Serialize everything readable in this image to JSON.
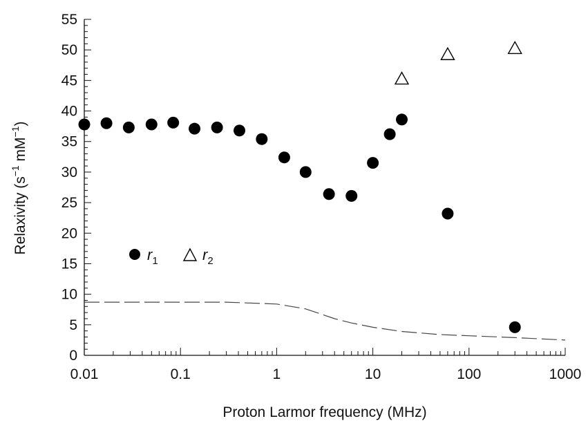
{
  "chart_data": {
    "type": "scatter",
    "xlabel": "Proton Larmor frequency (MHz)",
    "ylabel": {
      "base": "Relaxivity (s",
      "exp1": "−1",
      "mid": " mM",
      "exp2": "−1",
      "end": ")"
    },
    "x_scale": "log",
    "xlim": [
      0.01,
      1000
    ],
    "ylim": [
      0,
      55
    ],
    "x_tick_labels": [
      "0.01",
      "0.1",
      "1",
      "10",
      "100",
      "1000"
    ],
    "y_tick_labels": [
      "0",
      "5",
      "10",
      "15",
      "20",
      "25",
      "30",
      "35",
      "40",
      "45",
      "50",
      "55"
    ],
    "legend": {
      "placement": "lower-left",
      "r1": {
        "base": "r",
        "sub": "1"
      },
      "r2": {
        "base": "r",
        "sub": "2"
      }
    },
    "series": [
      {
        "name": "r1",
        "marker": "filled-circle",
        "x": [
          0.01,
          0.017,
          0.029,
          0.05,
          0.084,
          0.14,
          0.24,
          0.41,
          0.7,
          1.2,
          2.0,
          3.5,
          6.0,
          10,
          15,
          20,
          60,
          300
        ],
        "y": [
          37.8,
          38.0,
          37.3,
          37.8,
          38.1,
          37.1,
          37.3,
          36.8,
          35.4,
          32.4,
          30.0,
          26.4,
          26.1,
          31.5,
          36.2,
          38.6,
          23.2,
          4.6
        ]
      },
      {
        "name": "r2",
        "marker": "open-triangle",
        "x": [
          20,
          60,
          300
        ],
        "y": [
          45.2,
          49.2,
          50.2
        ]
      },
      {
        "name": "",
        "style": "dashed-line",
        "x": [
          0.01,
          0.1,
          0.3,
          1,
          2,
          4,
          6,
          10,
          20,
          50,
          100,
          300,
          1000
        ],
        "y": [
          8.7,
          8.7,
          8.7,
          8.4,
          7.6,
          6.0,
          5.3,
          4.6,
          3.9,
          3.4,
          3.2,
          2.9,
          2.5
        ]
      }
    ],
    "colors": {
      "marker": "#000000",
      "axis": "#111111",
      "dashed_line": "#444444"
    }
  }
}
